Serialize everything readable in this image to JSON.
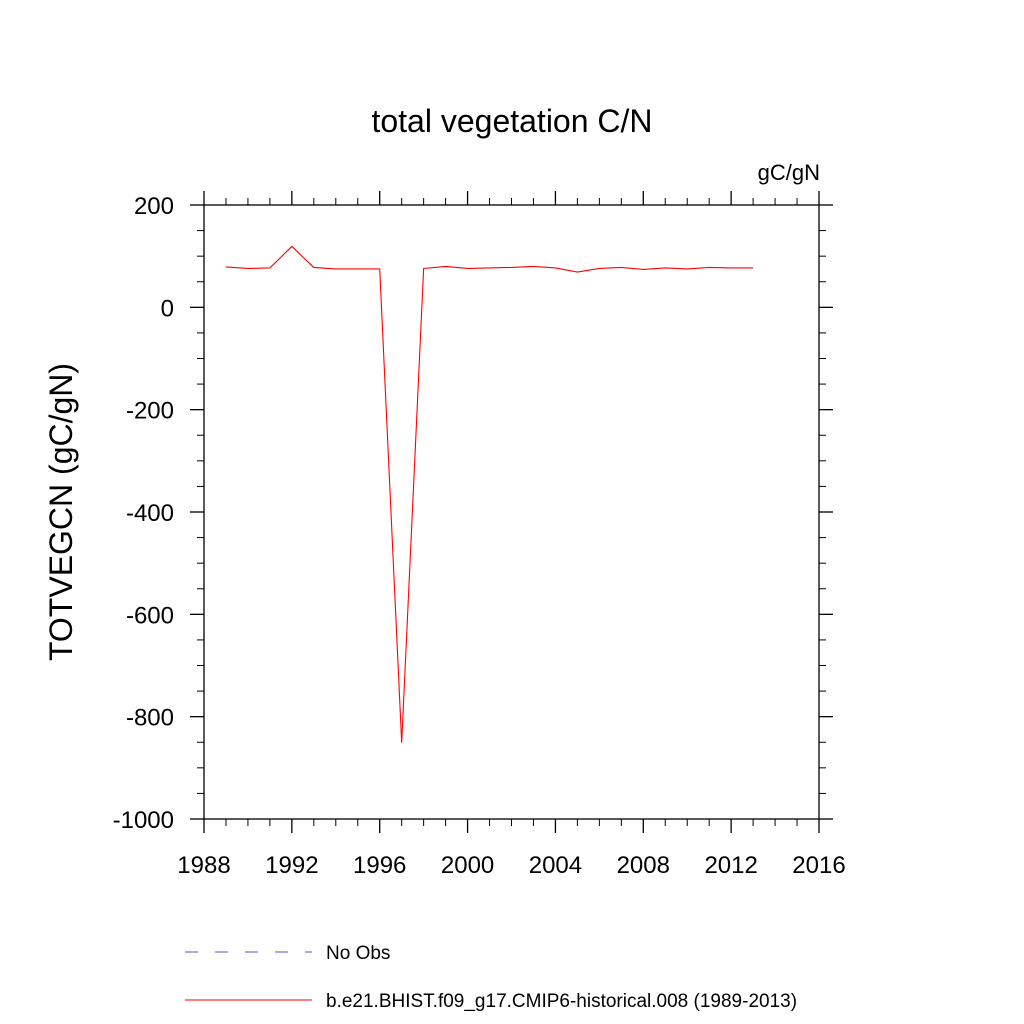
{
  "chart_data": {
    "type": "line",
    "title": "total vegetation C/N",
    "units": "gC/gN",
    "xlabel": "",
    "ylabel": "TOTVEGCN  (gC/gN)",
    "xlim": [
      1988,
      2016
    ],
    "ylim": [
      -1000,
      200
    ],
    "x_major_ticks": [
      1988,
      1992,
      1996,
      2000,
      2004,
      2008,
      2012,
      2016
    ],
    "x_tick_labels": [
      "1988",
      "1992",
      "1996",
      "2000",
      "2004",
      "2008",
      "2012",
      "2016"
    ],
    "y_major_ticks": [
      200,
      0,
      -200,
      -400,
      -600,
      -800,
      -1000
    ],
    "y_tick_labels": [
      "200",
      "0",
      "-200",
      "-400",
      "-600",
      "-800",
      "-1000"
    ],
    "grid": false,
    "legend_position": "bottom",
    "series": [
      {
        "name": "No Obs",
        "color": "#5555cc",
        "style": "dashed",
        "x": [],
        "values": []
      },
      {
        "name": "b.e21.BHIST.f09_g17.CMIP6-historical.008 (1989-2013)",
        "color": "#ff0000",
        "style": "solid",
        "x": [
          1989,
          1990,
          1991,
          1992,
          1993,
          1994,
          1995,
          1996,
          1997,
          1998,
          1999,
          2000,
          2001,
          2002,
          2003,
          2004,
          2005,
          2006,
          2007,
          2008,
          2009,
          2010,
          2011,
          2012,
          2013
        ],
        "values": [
          79,
          76,
          77,
          119,
          78,
          75,
          75,
          75,
          -851,
          76,
          80,
          76,
          77,
          78,
          80,
          77,
          69,
          76,
          78,
          74,
          77,
          75,
          78,
          77,
          77
        ]
      }
    ]
  }
}
